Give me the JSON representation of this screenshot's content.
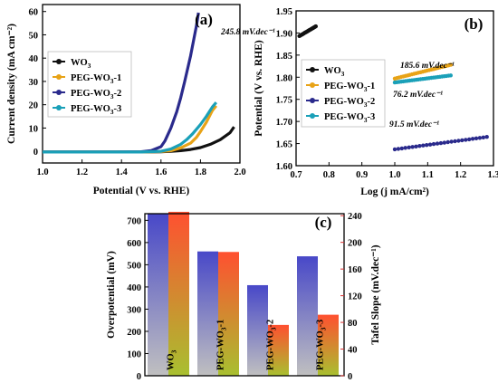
{
  "chart_data": [
    {
      "type": "line",
      "panel_label": "(a)",
      "xlabel": "Potential (V vs. RHE)",
      "ylabel": "Current density (mA cm⁻²)",
      "xlim": [
        1.0,
        2.0
      ],
      "ylim": [
        -5,
        63
      ],
      "x_ticks": [
        "1.0",
        "1.2",
        "1.4",
        "1.6",
        "1.8",
        "2.0"
      ],
      "y_ticks": [
        "0",
        "10",
        "20",
        "30",
        "40",
        "50",
        "60"
      ],
      "grid": false,
      "legend_position": "center-left",
      "series": [
        {
          "name": "WO3",
          "name_base": "WO",
          "name_sub": "3",
          "name_suffix": "",
          "color": "#111111",
          "x": [
            1.0,
            1.3,
            1.5,
            1.6,
            1.65,
            1.7,
            1.75,
            1.8,
            1.85,
            1.9,
            1.95,
            1.97
          ],
          "y": [
            -0.3,
            -0.3,
            -0.3,
            -0.2,
            0.0,
            0.3,
            0.8,
            1.6,
            3.0,
            5.0,
            8.0,
            10.5
          ]
        },
        {
          "name": "PEG-WO3-1",
          "name_base": "PEG-WO",
          "name_sub": "3",
          "name_suffix": "-1",
          "color": "#e8a317",
          "x": [
            1.0,
            1.3,
            1.5,
            1.6,
            1.65,
            1.7,
            1.75,
            1.78,
            1.8,
            1.83,
            1.86,
            1.88
          ],
          "y": [
            -0.3,
            -0.3,
            -0.3,
            -0.1,
            0.3,
            1.5,
            3.5,
            6.0,
            8.5,
            12.5,
            17.5,
            19.5
          ]
        },
        {
          "name": "PEG-WO3-2",
          "name_base": "PEG-WO",
          "name_sub": "3",
          "name_suffix": "-2",
          "color": "#2a2a8c",
          "x": [
            1.0,
            1.3,
            1.5,
            1.55,
            1.6,
            1.62,
            1.65,
            1.68,
            1.7,
            1.72,
            1.75,
            1.78,
            1.79
          ],
          "y": [
            -0.3,
            -0.3,
            -0.2,
            0.3,
            2.0,
            4.5,
            10.0,
            17.0,
            23.0,
            30.0,
            41.0,
            54.0,
            59.5
          ]
        },
        {
          "name": "PEG-WO3-3",
          "name_base": "PEG-WO",
          "name_sub": "3",
          "name_suffix": "-3",
          "color": "#1aa0b8",
          "x": [
            1.0,
            1.3,
            1.5,
            1.6,
            1.65,
            1.7,
            1.73,
            1.76,
            1.8,
            1.83,
            1.86,
            1.88
          ],
          "y": [
            -0.3,
            -0.3,
            -0.3,
            0.0,
            1.0,
            3.0,
            5.0,
            7.5,
            11.5,
            15.0,
            19.0,
            21.0
          ]
        }
      ]
    },
    {
      "type": "scatter",
      "panel_label": "(b)",
      "xlabel": "Log (j mA/cm²)",
      "ylabel": "Potential (V vs. RHE)",
      "xlim": [
        0.7,
        1.3
      ],
      "ylim": [
        1.6,
        1.95
      ],
      "x_ticks": [
        "0.7",
        "0.8",
        "0.9",
        "1.0",
        "1.1",
        "1.2",
        "1.3"
      ],
      "y_ticks": [
        "1.60",
        "1.65",
        "1.70",
        "1.75",
        "1.80",
        "1.85",
        "1.90",
        "1.95"
      ],
      "grid": false,
      "legend_position": "center-left",
      "series": [
        {
          "name": "WO3",
          "name_base": "WO",
          "name_sub": "3",
          "name_suffix": "",
          "color": "#111111",
          "x_range": [
            0.71,
            0.76
          ],
          "y_range": [
            1.893,
            1.915
          ],
          "annotation": "245.8 mV.dec⁻¹"
        },
        {
          "name": "PEG-WO3-1",
          "name_base": "PEG-WO",
          "name_sub": "3",
          "name_suffix": "-1",
          "color": "#e8a317",
          "x_range": [
            1.0,
            1.17
          ],
          "y_range": [
            1.797,
            1.828
          ],
          "annotation": "185.6 mV.dec⁻¹"
        },
        {
          "name": "PEG-WO3-2",
          "name_base": "PEG-WO",
          "name_sub": "3",
          "name_suffix": "-2",
          "color": "#2a2a8c",
          "x_range": [
            1.0,
            1.28
          ],
          "y_range": [
            1.637,
            1.665
          ],
          "annotation": "76.2 mV.dec⁻¹"
        },
        {
          "name": "PEG-WO3-3",
          "name_base": "PEG-WO",
          "name_sub": "3",
          "name_suffix": "-3",
          "color": "#1aa0b8",
          "x_range": [
            1.0,
            1.17
          ],
          "y_range": [
            1.788,
            1.804
          ],
          "annotation": "91.5 mV.dec⁻¹"
        }
      ]
    },
    {
      "type": "bar",
      "panel_label": "(c)",
      "categories": [
        "WO3",
        "PEG-WO3-1",
        "PEG-WO3-2",
        "PEG-WO3-3"
      ],
      "category_labels": [
        {
          "base": "WO",
          "sub": "3",
          "suffix": ""
        },
        {
          "base": "PEG-WO",
          "sub": "3",
          "suffix": "-1"
        },
        {
          "base": "PEG-WO",
          "sub": "3",
          "suffix": "-2"
        },
        {
          "base": "PEG-WO",
          "sub": "3",
          "suffix": "-3"
        }
      ],
      "ylabel": "Overpotential (mV)",
      "y2label": "Tafel Slope (mV.dec⁻¹)",
      "ylim": [
        0,
        730
      ],
      "y2lim": [
        0,
        243
      ],
      "y_ticks": [
        "0",
        "100",
        "200",
        "300",
        "400",
        "500",
        "600",
        "700"
      ],
      "y2_ticks": [
        "0",
        "40",
        "80",
        "120",
        "160",
        "200",
        "240"
      ],
      "ylabel_color": "#2b2ba6",
      "y2label_color": "#d93030",
      "series": [
        {
          "values": [
            730,
            560,
            408,
            538
          ],
          "axis": "left",
          "color_top": "#4848c8",
          "color_bottom": "#c0c0c0"
        },
        {
          "values": [
            245.8,
            185.6,
            76.2,
            91.5
          ],
          "axis": "right",
          "color_top": "#ff5030",
          "color_bottom": "#a8c030"
        }
      ]
    }
  ]
}
